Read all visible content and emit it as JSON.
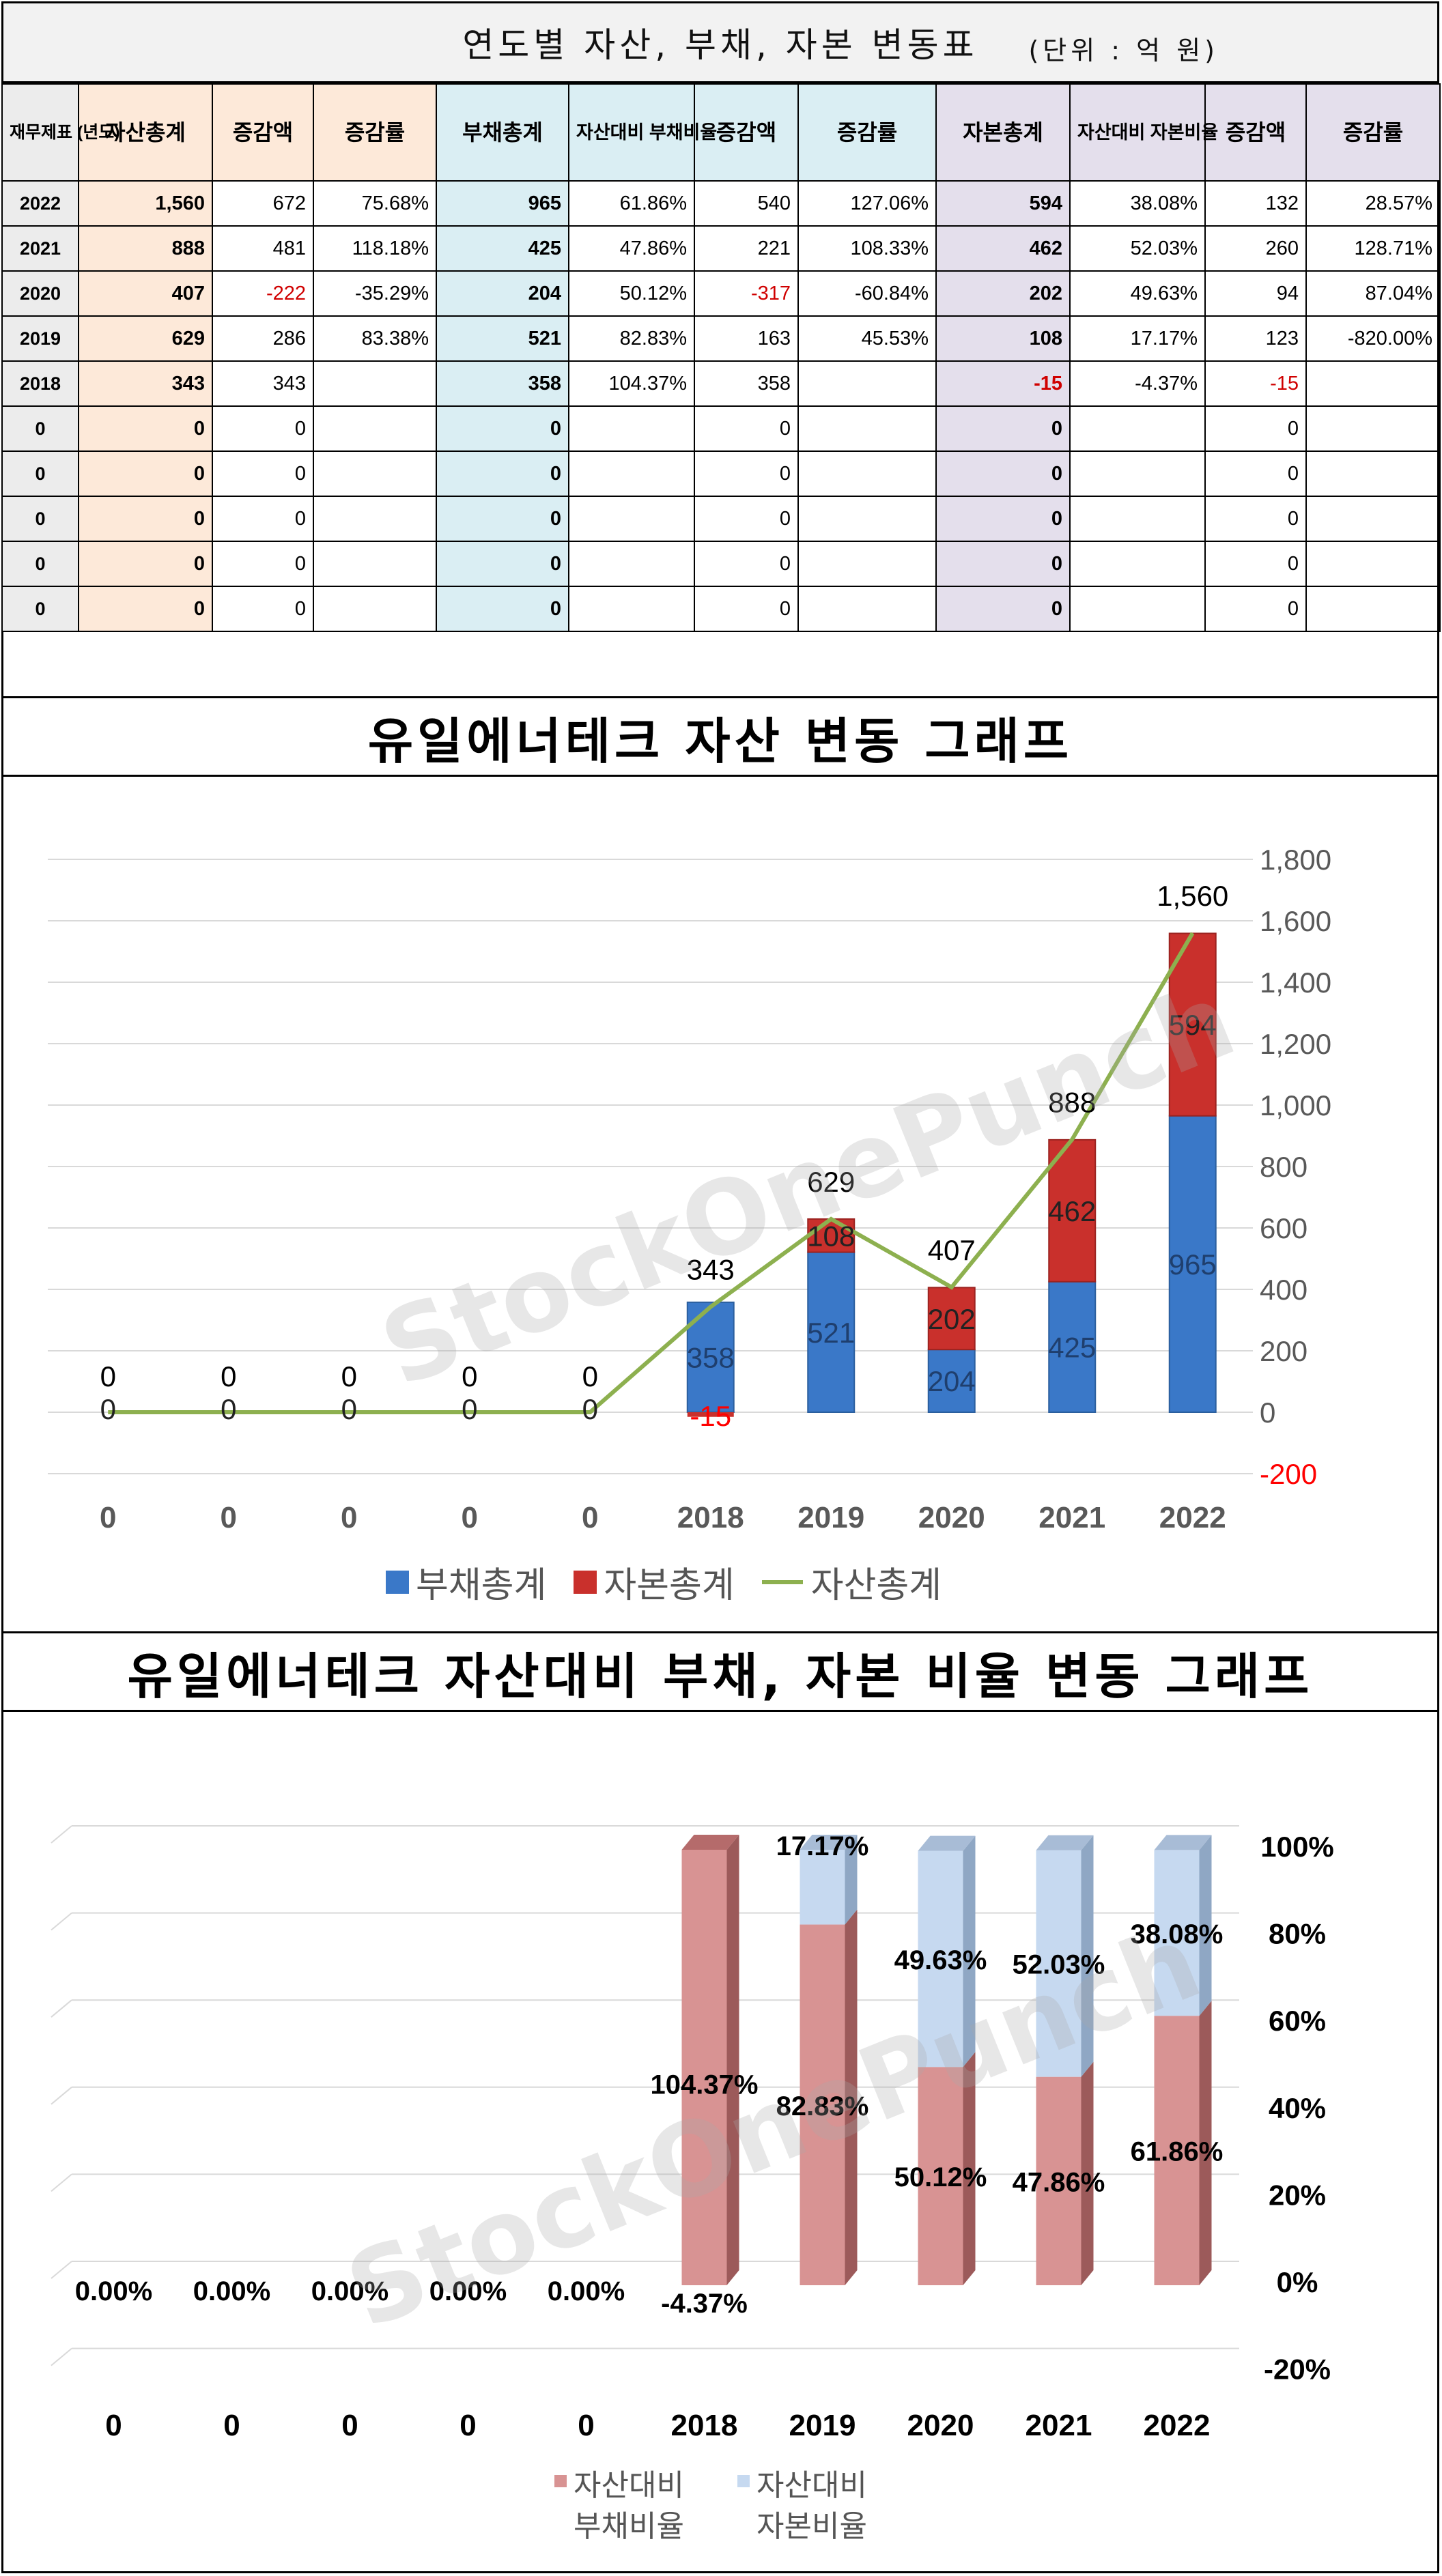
{
  "table": {
    "title": "연도별 자산, 부채, 자본 변동표",
    "unit": "(단위 : 억 원)",
    "headers": {
      "year": "재무제표 (년도)",
      "assets": "자산총계",
      "asset_change": "증감액",
      "asset_rate": "증감률",
      "liabilities": "부채총계",
      "liab_ratio": "자산대비 부채비율",
      "liab_change": "증감액",
      "liab_rate": "증감률",
      "equity": "자본총계",
      "equity_ratio": "자산대비 자본비율",
      "equity_change": "증감액",
      "equity_rate": "증감률"
    },
    "rows": [
      {
        "year": "2022",
        "assets": "1,560",
        "asset_change": "672",
        "asset_rate": "75.68%",
        "liabilities": "965",
        "liab_ratio": "61.86%",
        "liab_change": "540",
        "liab_rate": "127.06%",
        "equity": "594",
        "equity_ratio": "38.08%",
        "equity_change": "132",
        "equity_rate": "28.57%"
      },
      {
        "year": "2021",
        "assets": "888",
        "asset_change": "481",
        "asset_rate": "118.18%",
        "liabilities": "425",
        "liab_ratio": "47.86%",
        "liab_change": "221",
        "liab_rate": "108.33%",
        "equity": "462",
        "equity_ratio": "52.03%",
        "equity_change": "260",
        "equity_rate": "128.71%"
      },
      {
        "year": "2020",
        "assets": "407",
        "asset_change": "-222",
        "asset_rate": "-35.29%",
        "liabilities": "204",
        "liab_ratio": "50.12%",
        "liab_change": "-317",
        "liab_rate": "-60.84%",
        "equity": "202",
        "equity_ratio": "49.63%",
        "equity_change": "94",
        "equity_rate": "87.04%"
      },
      {
        "year": "2019",
        "assets": "629",
        "asset_change": "286",
        "asset_rate": "83.38%",
        "liabilities": "521",
        "liab_ratio": "82.83%",
        "liab_change": "163",
        "liab_rate": "45.53%",
        "equity": "108",
        "equity_ratio": "17.17%",
        "equity_change": "123",
        "equity_rate": "-820.00%"
      },
      {
        "year": "2018",
        "assets": "343",
        "asset_change": "343",
        "asset_rate": "",
        "liabilities": "358",
        "liab_ratio": "104.37%",
        "liab_change": "358",
        "liab_rate": "",
        "equity": "-15",
        "equity_ratio": "-4.37%",
        "equity_change": "-15",
        "equity_rate": ""
      },
      {
        "year": "0",
        "assets": "0",
        "asset_change": "0",
        "asset_rate": "",
        "liabilities": "0",
        "liab_ratio": "",
        "liab_change": "0",
        "liab_rate": "",
        "equity": "0",
        "equity_ratio": "",
        "equity_change": "0",
        "equity_rate": ""
      },
      {
        "year": "0",
        "assets": "0",
        "asset_change": "0",
        "asset_rate": "",
        "liabilities": "0",
        "liab_ratio": "",
        "liab_change": "0",
        "liab_rate": "",
        "equity": "0",
        "equity_ratio": "",
        "equity_change": "0",
        "equity_rate": ""
      },
      {
        "year": "0",
        "assets": "0",
        "asset_change": "0",
        "asset_rate": "",
        "liabilities": "0",
        "liab_ratio": "",
        "liab_change": "0",
        "liab_rate": "",
        "equity": "0",
        "equity_ratio": "",
        "equity_change": "0",
        "equity_rate": ""
      },
      {
        "year": "0",
        "assets": "0",
        "asset_change": "0",
        "asset_rate": "",
        "liabilities": "0",
        "liab_ratio": "",
        "liab_change": "0",
        "liab_rate": "",
        "equity": "0",
        "equity_ratio": "",
        "equity_change": "0",
        "equity_rate": ""
      },
      {
        "year": "0",
        "assets": "0",
        "asset_change": "0",
        "asset_rate": "",
        "liabilities": "0",
        "liab_ratio": "",
        "liab_change": "0",
        "liab_rate": "",
        "equity": "0",
        "equity_ratio": "",
        "equity_change": "0",
        "equity_rate": ""
      }
    ]
  },
  "watermark": "StockOnePunch",
  "colors": {
    "liabilities": "#3a78c8",
    "equity": "#c9302c",
    "assets_line": "#8db04f",
    "liab_ratio": "#d89393",
    "equity_ratio": "#c6d9f0",
    "negative": "#ff0000"
  },
  "chart_data": [
    {
      "type": "bar",
      "title": "유일에너테크 자산 변동 그래프",
      "categories": [
        "0",
        "0",
        "0",
        "0",
        "0",
        "2018",
        "2019",
        "2020",
        "2021",
        "2022"
      ],
      "series": [
        {
          "name": "부채총계",
          "type": "stacked-bar",
          "values": [
            0,
            0,
            0,
            0,
            0,
            358,
            521,
            204,
            425,
            965
          ]
        },
        {
          "name": "자본총계",
          "type": "stacked-bar",
          "values": [
            0,
            0,
            0,
            0,
            0,
            -15,
            108,
            202,
            462,
            594
          ]
        },
        {
          "name": "자산총계",
          "type": "line",
          "values": [
            0,
            0,
            0,
            0,
            0,
            343,
            629,
            407,
            888,
            1560
          ],
          "labels": [
            "0",
            "0",
            "0",
            "0",
            "0",
            "343",
            "629",
            "407",
            "888",
            "1,560"
          ]
        }
      ],
      "ylim": [
        -200,
        1800
      ],
      "y_ticks": [
        "-200",
        "0",
        "200",
        "400",
        "600",
        "800",
        "1,000",
        "1,200",
        "1,400",
        "1,600",
        "1,800"
      ],
      "y_axis_side": "right",
      "legend": "bottom",
      "grid": true
    },
    {
      "type": "bar",
      "title": "유일에너테크 자산대비 부채, 자본 비율 변동 그래프",
      "categories": [
        "0",
        "0",
        "0",
        "0",
        "0",
        "2018",
        "2019",
        "2020",
        "2021",
        "2022"
      ],
      "series": [
        {
          "name": "자산대비 부채비율",
          "type": "stacked-percent-bar",
          "values": [
            0,
            0,
            0,
            0,
            0,
            104.37,
            82.83,
            50.12,
            47.86,
            61.86
          ],
          "labels": [
            "0.00%",
            "0.00%",
            "0.00%",
            "0.00%",
            "0.00%",
            "104.37%",
            "82.83%",
            "50.12%",
            "47.86%",
            "61.86%"
          ]
        },
        {
          "name": "자산대비 자본비율",
          "type": "stacked-percent-bar",
          "values": [
            0,
            0,
            0,
            0,
            0,
            -4.37,
            17.17,
            49.63,
            52.03,
            38.08
          ],
          "labels": [
            "",
            "",
            "",
            "",
            "",
            "-4.37%",
            "17.17%",
            "49.63%",
            "52.03%",
            "38.08%"
          ]
        }
      ],
      "ylim": [
        -20,
        100
      ],
      "y_ticks": [
        "-20%",
        "0%",
        "20%",
        "40%",
        "60%",
        "80%",
        "100%"
      ],
      "y_axis_side": "right",
      "legend": "bottom",
      "grid": true
    }
  ]
}
